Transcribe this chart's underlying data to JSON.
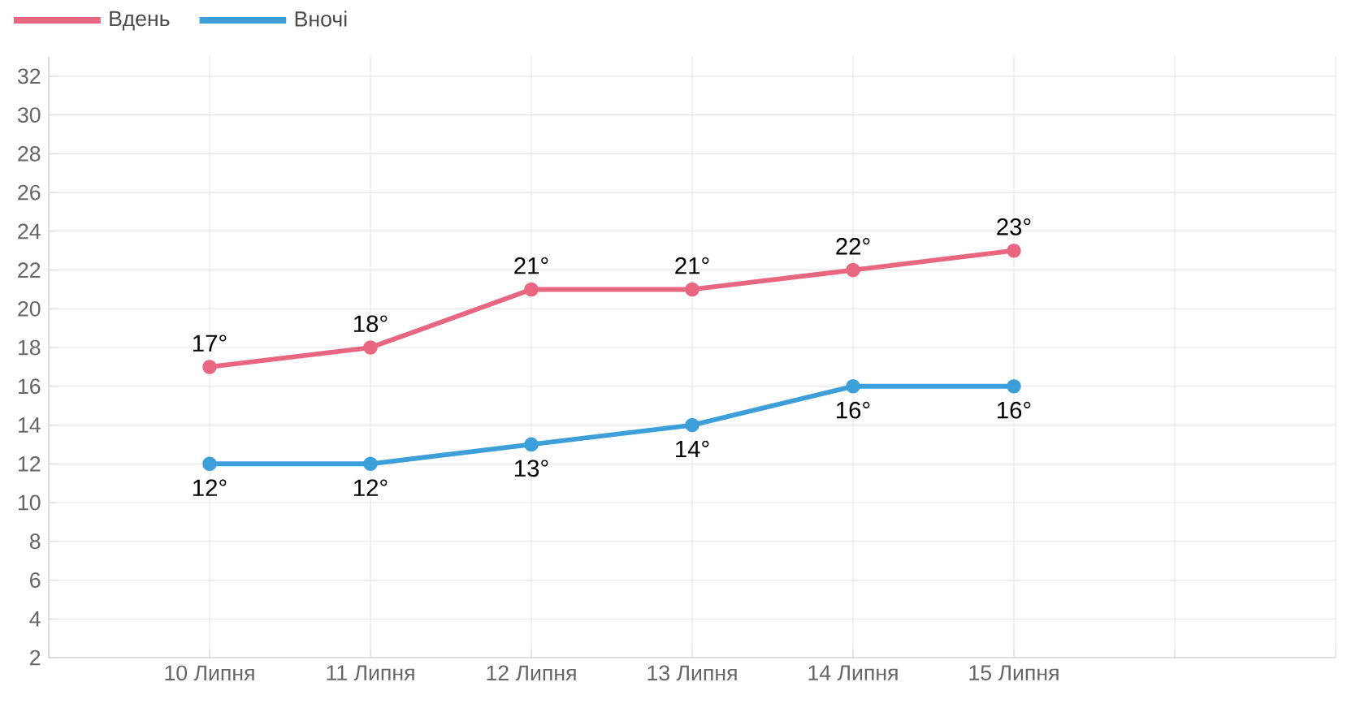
{
  "chart_data": {
    "type": "line",
    "categories": [
      null,
      "10 Липня",
      "11 Липня",
      "12 Липня",
      "13 Липня",
      "14 Липня",
      "15 Липня",
      null,
      null
    ],
    "series": [
      {
        "name": "Вдень",
        "color": "#e8667f",
        "values": [
          null,
          17,
          18,
          21,
          21,
          22,
          23,
          null,
          null
        ],
        "value_labels": [
          null,
          "17°",
          "18°",
          "21°",
          "21°",
          "22°",
          "23°",
          null,
          null
        ]
      },
      {
        "name": "Вночі",
        "color": "#3d9fd9",
        "values": [
          null,
          12,
          12,
          13,
          14,
          16,
          16,
          null,
          null
        ],
        "value_labels": [
          null,
          "12°",
          "12°",
          "13°",
          "14°",
          "16°",
          "16°",
          null,
          null
        ]
      }
    ],
    "ylim": [
      2,
      33
    ],
    "yticks": [
      2,
      4,
      6,
      8,
      10,
      12,
      14,
      16,
      18,
      20,
      22,
      24,
      26,
      28,
      30,
      32
    ],
    "grid": true,
    "legend": "top left",
    "marker": "circle",
    "line_style": "solid"
  }
}
